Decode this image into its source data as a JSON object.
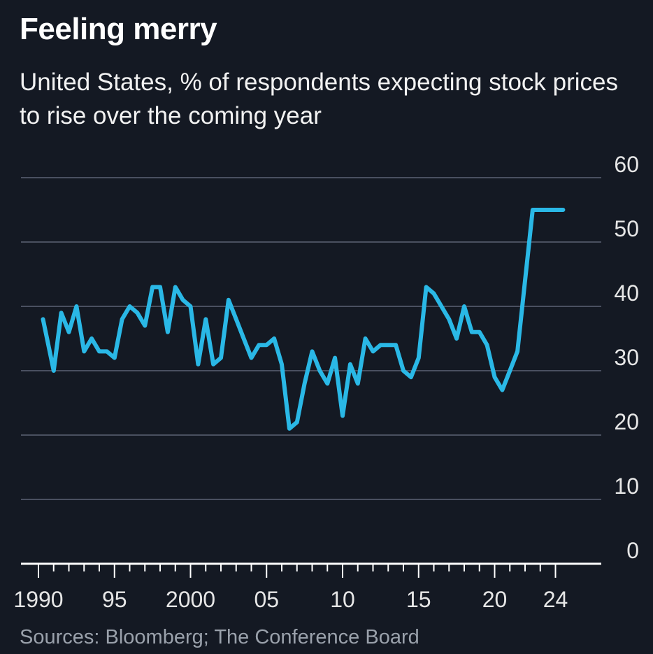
{
  "title": "Feeling merry",
  "subtitle": "United States, % of respondents expecting stock prices to rise over the coming year",
  "source": "Sources: Bloomberg; The Conference Board",
  "colors": {
    "background": "#141923",
    "line": "#2ab8e6",
    "grid": "#4a5060"
  },
  "chart_data": {
    "type": "line",
    "title": "Feeling merry",
    "subtitle": "United States, % of respondents expecting stock prices to rise over the coming year",
    "ylim": [
      0,
      60
    ],
    "xlim": [
      1990,
      2025
    ],
    "grid": true,
    "y_ticks": [
      0,
      10,
      20,
      30,
      40,
      50,
      60
    ],
    "y_tick_labels": [
      "0",
      "10",
      "20",
      "30",
      "40",
      "50",
      "60"
    ],
    "x_ticks": [
      1990,
      1995,
      2000,
      2005,
      2010,
      2015,
      2020,
      2024
    ],
    "x_tick_labels": [
      "1990",
      "95",
      "2000",
      "05",
      "10",
      "15",
      "20",
      "24"
    ],
    "series": [
      {
        "x": [
          1990.3,
          1991.0,
          1991.5,
          1992.0,
          1992.5,
          1993.0,
          1993.5,
          1994.0,
          1994.5,
          1995.0,
          1995.5,
          1996.0,
          1996.5,
          1997.0,
          1997.5,
          1998.0,
          1998.5,
          1999.0,
          1999.5,
          2000.0,
          2000.5,
          2001.0,
          2001.5,
          2002.0,
          2002.5,
          2003.0,
          2003.5,
          2004.0,
          2004.5,
          2005.0,
          2005.5,
          2006.0,
          2006.5,
          2007.0,
          2007.5,
          2008.0,
          2008.5,
          2009.0,
          2009.5,
          2010.0,
          2010.5,
          2011.0,
          2011.5,
          2012.0,
          2012.5,
          2013.0,
          2013.5,
          2014.0,
          2014.5,
          2015.0,
          2015.5,
          2016.0,
          2016.5,
          2017.0,
          2017.5,
          2018.0,
          2018.5,
          2019.0,
          2019.5,
          2020.0,
          2020.5,
          2021.0,
          2021.5,
          2022.0,
          2022.5,
          2023.0,
          2023.5,
          2024.0,
          2024.5
        ],
        "y": [
          38,
          30,
          39,
          36,
          40,
          33,
          35,
          33,
          33,
          32,
          38,
          40,
          39,
          37,
          43,
          43,
          36,
          43,
          41,
          40,
          31,
          38,
          31,
          32,
          41,
          38,
          35,
          32,
          34,
          34,
          35,
          31,
          21,
          22,
          28,
          33,
          30,
          28,
          32,
          23,
          31,
          28,
          35,
          33,
          34,
          34,
          34,
          30,
          29,
          32,
          43,
          42,
          40,
          38,
          35,
          40,
          36,
          36,
          34,
          29,
          27,
          30,
          33,
          44,
          55,
          55,
          55,
          55,
          55
        ]
      }
    ]
  }
}
